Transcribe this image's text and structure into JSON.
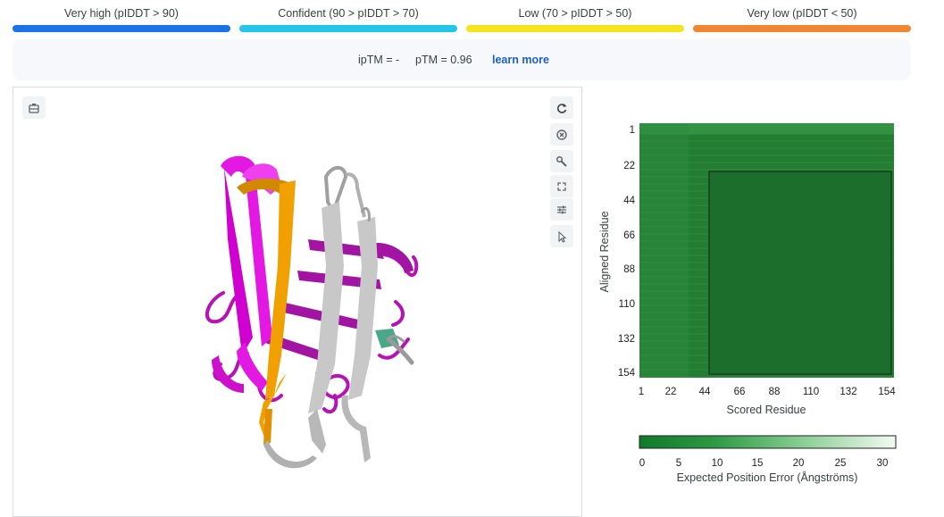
{
  "legend": [
    {
      "label": "Very high (pIDDT > 90)",
      "color": "#1a73e8"
    },
    {
      "label": "Confident (90 > pIDDT > 70)",
      "color": "#23c6ea"
    },
    {
      "label": "Low (70 > pIDDT > 50)",
      "color": "#f5e31b"
    },
    {
      "label": "Very low (pIDDT < 50)",
      "color": "#f08732"
    }
  ],
  "scores": {
    "iptm_text": "ipTM = -",
    "ptm_text": "pTM = 0.96",
    "learn_more": "learn more"
  },
  "viewer": {
    "toolbar": [
      {
        "name": "reset-view-icon"
      },
      {
        "name": "spin-icon"
      },
      {
        "name": "wrench-icon"
      },
      {
        "name": "fullscreen-icon"
      },
      {
        "name": "settings-sliders-icon"
      },
      {
        "name": "select-cursor-icon"
      }
    ],
    "top_left_icon": "camera-icon",
    "ribbon_colors": {
      "magenta": "#e319e3",
      "orange": "#f0a000",
      "gray": "#c8c8c8",
      "teal": "#4aa88a"
    }
  },
  "pae": {
    "y_title": "Aligned Residue",
    "x_title": "Scored Residue",
    "y_ticks": [
      "1",
      "22",
      "44",
      "66",
      "88",
      "110",
      "132",
      "154"
    ],
    "x_ticks": [
      "1",
      "22",
      "44",
      "66",
      "88",
      "110",
      "132",
      "154"
    ],
    "colorbar_ticks": [
      "0",
      "5",
      "10",
      "15",
      "20",
      "25",
      "30"
    ],
    "colorbar_title": "Expected Position Error (Ångströms)",
    "colors": {
      "low": "#0e7a2b",
      "mid": "#2e9a45",
      "high": "#f3faf2",
      "box": "#1b5c2a"
    }
  }
}
